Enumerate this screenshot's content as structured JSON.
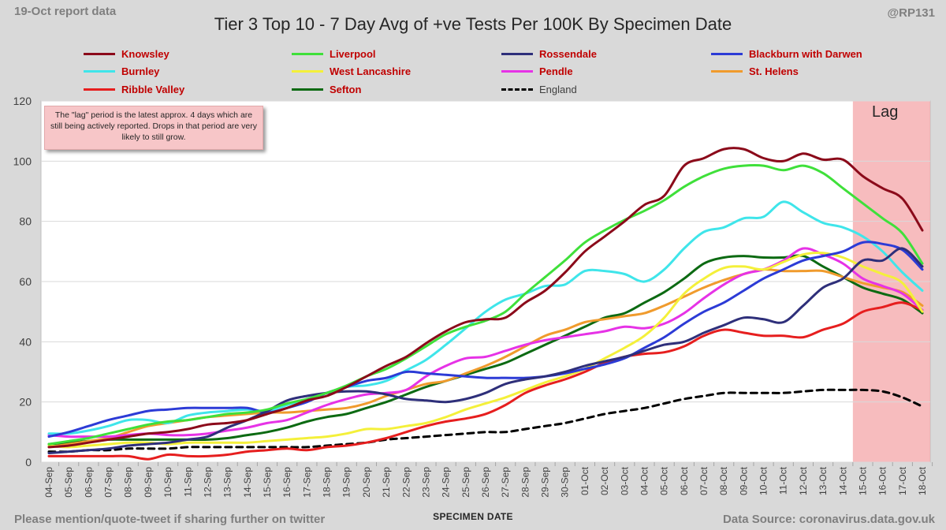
{
  "header": {
    "report_date": "19-Oct report data",
    "handle": "@RP131"
  },
  "footer": {
    "left_text": "Please mention/quote-tweet if sharing further on twitter",
    "right_text": "Data Source: coronavirus.data.gov.uk"
  },
  "note": "The \"lag\" period is the latest approx. 4 days which are still being actively reported.  Drops in that period are very likely to still grow.",
  "lag_label": "Lag",
  "chart_data": {
    "type": "line",
    "title": "Tier 3 Top 10 - 7 Day Avg of +ve Tests Per 100K By Specimen Date",
    "xlabel": "SPECIMEN DATE",
    "ylabel": "",
    "ylim": [
      0,
      120
    ],
    "yticks": [
      0,
      20,
      40,
      60,
      80,
      100,
      120
    ],
    "grid": "horizontal",
    "legend_position": "top",
    "lag_region": [
      "14-Oct",
      "18-Oct"
    ],
    "categories": [
      "04-Sep",
      "05-Sep",
      "06-Sep",
      "07-Sep",
      "08-Sep",
      "09-Sep",
      "10-Sep",
      "11-Sep",
      "12-Sep",
      "13-Sep",
      "14-Sep",
      "15-Sep",
      "16-Sep",
      "17-Sep",
      "18-Sep",
      "19-Sep",
      "20-Sep",
      "21-Sep",
      "22-Sep",
      "23-Sep",
      "24-Sep",
      "25-Sep",
      "26-Sep",
      "27-Sep",
      "28-Sep",
      "29-Sep",
      "30-Sep",
      "01-Oct",
      "02-Oct",
      "03-Oct",
      "04-Oct",
      "05-Oct",
      "06-Oct",
      "07-Oct",
      "08-Oct",
      "09-Oct",
      "10-Oct",
      "11-Oct",
      "12-Oct",
      "13-Oct",
      "14-Oct",
      "15-Oct",
      "16-Oct",
      "17-Oct",
      "18-Oct"
    ],
    "series": [
      {
        "name": "Knowsley",
        "color": "#8b0a1a",
        "dash": false,
        "values": [
          5,
          5.5,
          6.5,
          7.5,
          8.5,
          9.5,
          10,
          11,
          12.5,
          13,
          14,
          16,
          18,
          20.5,
          22,
          25,
          28.5,
          32,
          35,
          39.5,
          43.5,
          46.5,
          47.5,
          48,
          53,
          57,
          63,
          70,
          75,
          80,
          85.5,
          88.5,
          98.5,
          101,
          104,
          104,
          101,
          100,
          102.5,
          100.5,
          100.5,
          95,
          91,
          87.5,
          77
        ]
      },
      {
        "name": "Liverpool",
        "color": "#3fe03a",
        "dash": false,
        "values": [
          6,
          7,
          8,
          9.5,
          11,
          12.5,
          13.5,
          14,
          15,
          16,
          16.5,
          17.5,
          19.5,
          21,
          23,
          25.5,
          28.5,
          31,
          34.5,
          38.5,
          42.5,
          45,
          47,
          50,
          56,
          61.5,
          67,
          73,
          77,
          80.5,
          83.5,
          87,
          91.5,
          95,
          97.5,
          98.5,
          98.5,
          97,
          98.5,
          96,
          91,
          86,
          81,
          76,
          66
        ]
      },
      {
        "name": "Rossendale",
        "color": "#2e2f7a",
        "dash": false,
        "values": [
          3,
          3.5,
          4,
          4.5,
          5.5,
          6,
          6.5,
          7.5,
          8.5,
          11.5,
          14,
          17,
          20.5,
          22,
          23,
          23.5,
          23.5,
          22.5,
          21,
          20.5,
          20,
          21,
          23,
          26,
          27.5,
          28.5,
          30,
          32,
          33.5,
          35,
          37,
          39,
          40,
          43,
          45.5,
          48,
          47.5,
          46.5,
          52,
          58,
          61,
          67,
          67,
          71,
          65
        ]
      },
      {
        "name": "Blackburn with Darwen",
        "color": "#2c3bd6",
        "dash": false,
        "values": [
          8.5,
          10,
          12,
          14,
          15.5,
          17,
          17.5,
          18,
          18,
          18,
          18,
          16.5,
          18,
          20,
          23,
          25,
          27,
          28,
          30,
          29.5,
          29,
          28.5,
          28,
          28,
          28,
          28.5,
          29.5,
          31,
          32.5,
          34.5,
          38,
          41.5,
          46,
          50,
          53,
          57,
          61,
          64,
          67,
          68.5,
          70,
          73,
          72.5,
          70.5,
          64
        ]
      },
      {
        "name": "Burnley",
        "color": "#3fe5ea",
        "dash": false,
        "values": [
          9.5,
          9.5,
          10.5,
          12,
          14,
          14,
          13,
          15.5,
          16.5,
          17,
          17.5,
          17,
          19,
          21,
          23,
          25,
          25.5,
          27,
          30.5,
          34,
          39,
          44.5,
          50,
          54,
          56,
          58.5,
          59,
          63.5,
          63.5,
          62.5,
          60,
          64,
          71,
          76.5,
          78,
          81,
          81.5,
          86.5,
          83,
          79.5,
          78,
          75,
          70,
          63,
          57
        ]
      },
      {
        "name": "West Lancashire",
        "color": "#f4f03a",
        "dash": false,
        "values": [
          5.5,
          5,
          5.5,
          6,
          6.5,
          6.5,
          6,
          6.5,
          6.5,
          6.5,
          6.5,
          7,
          7.5,
          8,
          8.5,
          9.5,
          11,
          11,
          12,
          13,
          15,
          17.5,
          19.5,
          21.5,
          24,
          26.5,
          28.5,
          31,
          34.5,
          38,
          42,
          48,
          56,
          61,
          64.5,
          65,
          64,
          66.5,
          69,
          69.5,
          68,
          65,
          62.5,
          59.5,
          50
        ]
      },
      {
        "name": "Pendle",
        "color": "#e632e6",
        "dash": false,
        "values": [
          9,
          8.5,
          8.5,
          8.5,
          9,
          9.5,
          9,
          9,
          9.5,
          10.5,
          11.5,
          13,
          14,
          16.5,
          19,
          21,
          22.5,
          23,
          24,
          28.5,
          32,
          34.5,
          35,
          37,
          39,
          40.5,
          41.5,
          42.5,
          43.5,
          45,
          44.5,
          46,
          49.5,
          54.5,
          59,
          62.5,
          64,
          67,
          71,
          69,
          66,
          61,
          58.5,
          56,
          50.5
        ]
      },
      {
        "name": "St. Helens",
        "color": "#f09b2d",
        "dash": false,
        "values": [
          5,
          6,
          7,
          8,
          10,
          12,
          13,
          14,
          15,
          15.5,
          16,
          16.5,
          16.5,
          17,
          17.5,
          18,
          19.5,
          22,
          24,
          26,
          27,
          29.5,
          32,
          35,
          38.5,
          42,
          44,
          46.5,
          47.5,
          48.5,
          49.5,
          52,
          55,
          58,
          60.5,
          62.5,
          64,
          63.5,
          63.5,
          63.5,
          61.5,
          59.5,
          58,
          56.5,
          52
        ]
      },
      {
        "name": "Ribble Valley",
        "color": "#e61e1e",
        "dash": false,
        "values": [
          2,
          2,
          2,
          2,
          2,
          1,
          2.5,
          2,
          2,
          2.5,
          3.5,
          4,
          4.5,
          4,
          5,
          5.5,
          6.5,
          8,
          10,
          12,
          13.5,
          14.5,
          16,
          19,
          23,
          25.5,
          27.5,
          30,
          33,
          35,
          36,
          36.5,
          38.5,
          42,
          44,
          43,
          42,
          42,
          41.5,
          44,
          46,
          50,
          51.5,
          53,
          50.5
        ]
      },
      {
        "name": "Sefton",
        "color": "#0c6a12",
        "dash": false,
        "values": [
          6,
          6.5,
          7,
          7.5,
          7.5,
          7.5,
          7.5,
          7.5,
          7.5,
          8,
          9,
          10,
          11.5,
          13.5,
          15,
          16,
          18,
          20,
          22.5,
          25,
          27,
          29,
          31,
          33,
          36,
          39,
          42,
          45,
          48,
          49.5,
          53,
          56.5,
          61,
          66,
          68,
          68.5,
          68,
          68,
          68.5,
          65,
          61.5,
          58,
          56,
          54,
          49.5
        ]
      },
      {
        "name": "England",
        "color": "#000000",
        "dash": true,
        "values": [
          3.5,
          3.5,
          4,
          4,
          4.5,
          4.5,
          4.5,
          5,
          5,
          5,
          5,
          5,
          5,
          5,
          5.5,
          6,
          6.5,
          7.5,
          8,
          8.5,
          9,
          9.5,
          10,
          10,
          11,
          12,
          13,
          14.5,
          16,
          17,
          18,
          19.5,
          21,
          22,
          23,
          23,
          23,
          23,
          23.5,
          24,
          24,
          24,
          23.5,
          21.5,
          18.5
        ]
      }
    ]
  }
}
